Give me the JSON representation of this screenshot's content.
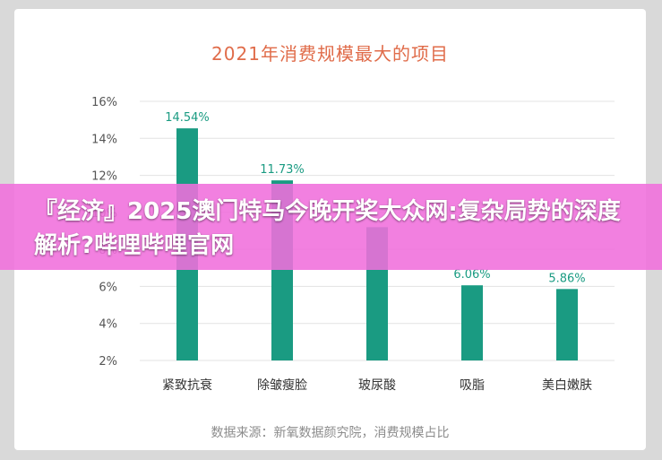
{
  "overlay_title": "『经济』2025澳门特马今晚开奖大众网:复杂局势的深度解析?哔哩哔哩官网",
  "chart_data": {
    "type": "bar",
    "title": "2021年消费规模最大的项目",
    "categories": [
      "紧致抗衰",
      "除皱瘦脸",
      "玻尿酸",
      "吸脂",
      "美白嫩肤"
    ],
    "values": [
      14.54,
      11.73,
      9.2,
      6.06,
      5.86
    ],
    "value_labels": [
      "14.54%",
      "11.73%",
      "",
      "6.06%",
      "5.86%"
    ],
    "yticks": [
      "2%",
      "4%",
      "6%",
      "8%",
      "10%",
      "12%",
      "14%",
      "16%"
    ],
    "ylim": [
      2,
      16
    ],
    "grid": true,
    "bar_color": "#1a9b82",
    "source": "数据来源：新氧数据颜究院，消费规模占比"
  }
}
